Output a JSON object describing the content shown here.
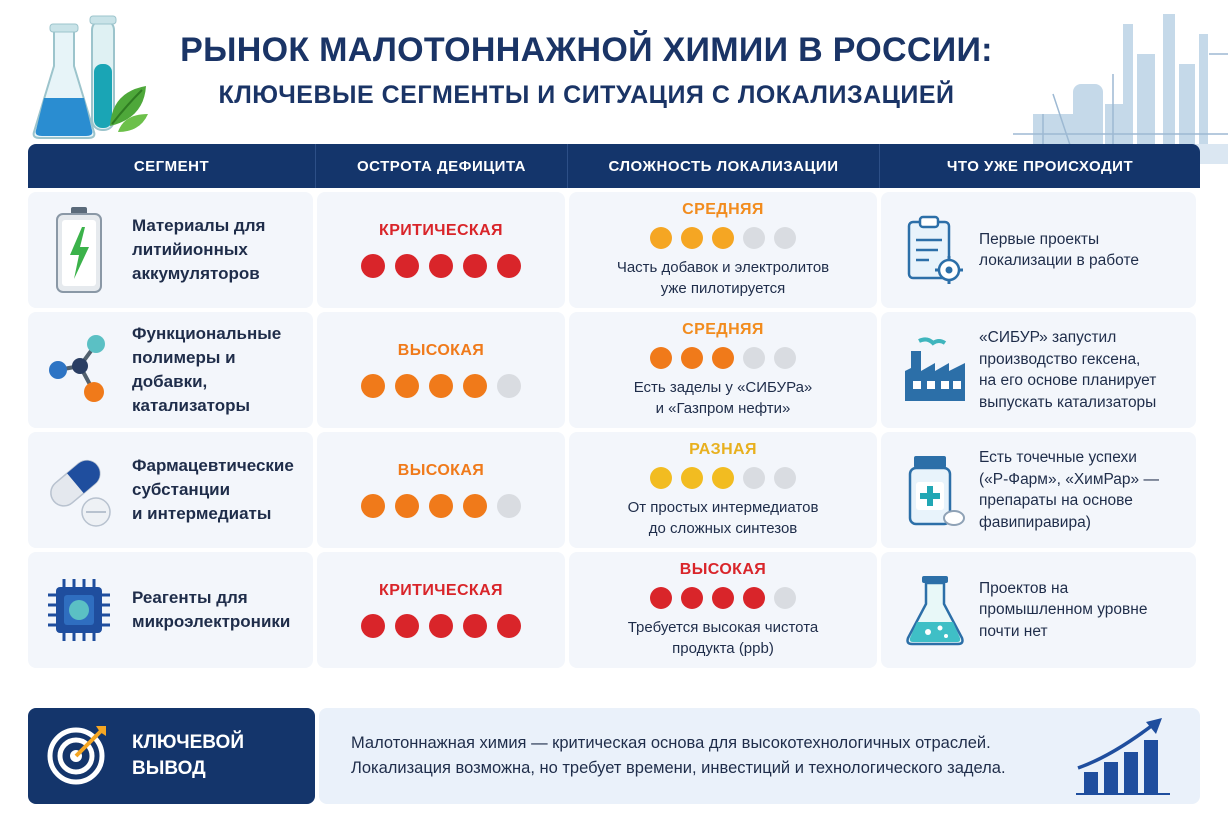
{
  "header": {
    "title": "РЫНОК МАЛОТОННАЖНОЙ ХИМИИ В РОССИИ:",
    "subtitle": "КЛЮЧЕВЫЕ СЕГМЕНТЫ И СИТУАЦИЯ С ЛОКАЛИЗАЦИЕЙ"
  },
  "table": {
    "columns": [
      "СЕГМЕНТ",
      "ОСТРОТА ДЕФИЦИТА",
      "СЛОЖНОСТЬ ЛОКАЛИЗАЦИИ",
      "ЧТО УЖЕ ПРОИСХОДИТ"
    ],
    "rows": [
      {
        "segment": "Материалы для\nлитийионных\nаккумуляторов",
        "segment_icon": "battery-icon",
        "deficit_level": "КРИТИЧЕСКАЯ",
        "deficit_color": "#d9252a",
        "deficit_score": 5,
        "loc_level": "СРЕДНЯЯ",
        "loc_color": "#f28c1e",
        "loc_dot_color": "#f5a623",
        "loc_score": 3,
        "loc_note": "Часть добавок и электролитов\nуже пилотируется",
        "action_icon": "clipboard-gear-icon",
        "action": "Первые проекты\nлокализации в работе"
      },
      {
        "segment": "Функциональные\nполимеры и добавки,\nкатализаторы",
        "segment_icon": "molecule-icon",
        "deficit_level": "ВЫСОКАЯ",
        "deficit_color": "#f07a1a",
        "deficit_score": 4,
        "loc_level": "СРЕДНЯЯ",
        "loc_color": "#f28c1e",
        "loc_dot_color": "#f07a1a",
        "loc_score": 3,
        "loc_note": "Есть заделы у «СИБУРа»\nи «Газпром нефти»",
        "action_icon": "factory-icon",
        "action": "«СИБУР» запустил\nпроизводство гексена,\nна его основе планирует\nвыпускать катализаторы"
      },
      {
        "segment": "Фармацевтические\nсубстанции\nи интермедиаты",
        "segment_icon": "pills-icon",
        "deficit_level": "ВЫСОКАЯ",
        "deficit_color": "#f07a1a",
        "deficit_score": 4,
        "loc_level": "РАЗНАЯ",
        "loc_color": "#e8b01e",
        "loc_dot_color": "#f2bc21",
        "loc_score": 3,
        "loc_note": "От простых интермедиатов\nдо сложных синтезов",
        "action_icon": "medicine-jar-icon",
        "action": "Есть точечные успехи\n(«Р-Фарм», «ХимРар» —\nпрепараты на основе\nфавипиравира)"
      },
      {
        "segment": "Реагенты для\nмикроэлектроники",
        "segment_icon": "microchip-icon",
        "deficit_level": "КРИТИЧЕСКАЯ",
        "deficit_color": "#d9252a",
        "deficit_score": 5,
        "loc_level": "ВЫСОКАЯ",
        "loc_color": "#d9252a",
        "loc_dot_color": "#d9252a",
        "loc_score": 4,
        "loc_note": "Требуется высокая чистота\nпродукта (ppb)",
        "action_icon": "flask-icon",
        "action": "Проектов на\nпромышленном уровне\nпочти нет"
      }
    ]
  },
  "footer": {
    "label": "КЛЮЧЕВОЙ\nВЫВОД",
    "text": "Малотоннажная химия — критическая основа для высокотехнологичных отраслей.\nЛокализация возможна, но требует времени, инвестиций и технологического задела."
  },
  "colors": {
    "navy": "#14356b",
    "empty_dot": "#d9dce1",
    "row_bg": "#f3f6fb"
  }
}
